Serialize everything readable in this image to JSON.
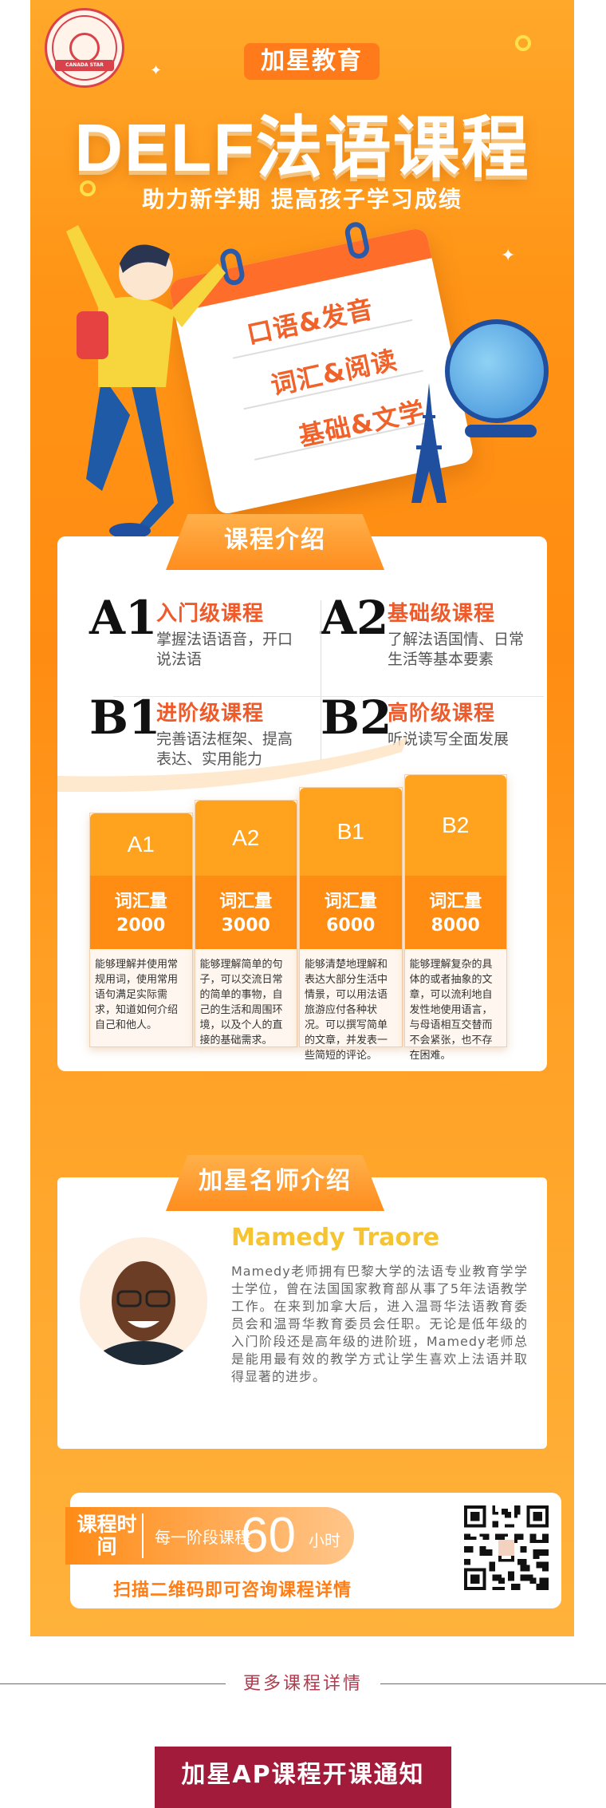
{
  "logo": {
    "ribbon_text": "CANADA STAR"
  },
  "header": {
    "brand": "加星教育",
    "title": "DELF法语课程",
    "subtitle": "助力新学期  提高孩子学习成绩"
  },
  "hero": {
    "calendar_items": [
      "口语&发音",
      "词汇&阅读",
      "基础&文学"
    ]
  },
  "course_intro": {
    "heading": "课程介绍",
    "levels": [
      {
        "code": "A1",
        "name": "入门级课程",
        "desc": "掌握法语语音，开口说法语"
      },
      {
        "code": "A2",
        "name": "基础级课程",
        "desc": "了解法语国情、日常生活等基本要素"
      },
      {
        "code": "B1",
        "name": "进阶级课程",
        "desc": "完善语法框架、提高表达、实用能力"
      },
      {
        "code": "B2",
        "name": "高阶级课程",
        "desc": "听说读写全面发展"
      }
    ],
    "vocab_columns": [
      {
        "level": "A1",
        "vocab_label": "词汇量",
        "vocab_count": "2000",
        "desc": "能够理解并使用常规用词，使用常用语句满足实际需求，知道如何介绍自己和他人。"
      },
      {
        "level": "A2",
        "vocab_label": "词汇量",
        "vocab_count": "3000",
        "desc": "能够理解简单的句子，可以交流日常的简单的事物，自己的生活和周围环境，以及个人的直接的基础需求。"
      },
      {
        "level": "B1",
        "vocab_label": "词汇量",
        "vocab_count": "6000",
        "desc": "能够清楚地理解和表达大部分生活中情景，可以用法语旅游应付各种状况。可以撰写简单的文章，并发表一些简短的评论。"
      },
      {
        "level": "B2",
        "vocab_label": "词汇量",
        "vocab_count": "8000",
        "desc": "能够理解复杂的具体的或者抽象的文章，可以流利地自发性地使用语言，与母语相互交替而不会紧张，也不存在困难。"
      }
    ]
  },
  "teacher": {
    "heading": "加星名师介绍",
    "name": "Mamedy Traore",
    "bio": "Mamedy老师拥有巴黎大学的法语专业教育学学士学位，曾在法国国家教育部从事了5年法语教学工作。在来到加拿大后，进入温哥华法语教育委员会和温哥华教育委员会任职。无论是低年级的入门阶段还是高年级的进阶班，Mamedy老师总是能用最有效的教学方式让学生喜欢上法语并取得显著的进步。"
  },
  "schedule": {
    "label": "课程时间",
    "prefix": "每一阶段课程",
    "hours": "60",
    "unit": "小时",
    "scan_text": "扫描二维码即可咨询课程详情"
  },
  "footer": {
    "more_link": "更多课程详情",
    "notice_button": "加星AP课程开课通知"
  },
  "colors": {
    "orange": "#ff8c12",
    "accent": "#ef5a2a",
    "maroon": "#a21b3a",
    "gold": "#f7c431"
  }
}
